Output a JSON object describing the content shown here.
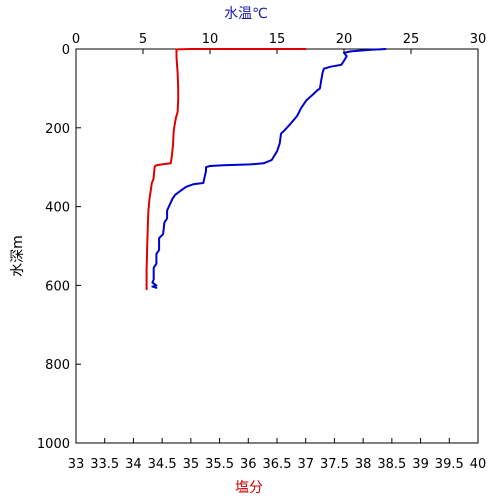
{
  "chart_data": {
    "type": "line",
    "title": "",
    "y_axis": {
      "label": "水深m",
      "range": [
        0,
        1000
      ],
      "inverted": true,
      "ticks": [
        0,
        200,
        400,
        600,
        800,
        1000
      ]
    },
    "x_axis_top": {
      "label": "水温℃",
      "label_color": "#1a1aa6",
      "range": [
        0,
        30
      ],
      "ticks": [
        0,
        5,
        10,
        15,
        20,
        25,
        30
      ]
    },
    "x_axis_bottom": {
      "label": "塩分",
      "label_color": "#cc0000",
      "range": [
        33,
        40
      ],
      "ticks": [
        "33",
        "33.5",
        "34",
        "34.5",
        "35",
        "35.5",
        "36",
        "36.5",
        "37",
        "37.5",
        "38",
        "38.5",
        "39",
        "39.5",
        "40"
      ]
    },
    "grid": false,
    "series": [
      {
        "axis": "top",
        "color": "#0000cc",
        "points": [
          [
            23.1,
            0
          ],
          [
            22.0,
            2
          ],
          [
            20.5,
            6
          ],
          [
            20.0,
            10
          ],
          [
            20.2,
            18
          ],
          [
            20.0,
            30
          ],
          [
            19.8,
            40
          ],
          [
            19.0,
            45
          ],
          [
            18.5,
            50
          ],
          [
            18.4,
            60
          ],
          [
            18.3,
            80
          ],
          [
            18.2,
            100
          ],
          [
            18.0,
            105
          ],
          [
            17.7,
            115
          ],
          [
            17.2,
            130
          ],
          [
            16.8,
            150
          ],
          [
            16.5,
            170
          ],
          [
            16.0,
            190
          ],
          [
            15.6,
            205
          ],
          [
            15.3,
            215
          ],
          [
            15.2,
            240
          ],
          [
            15.0,
            260
          ],
          [
            14.6,
            282
          ],
          [
            14.0,
            290
          ],
          [
            13.0,
            293
          ],
          [
            11.0,
            295
          ],
          [
            10.0,
            297
          ],
          [
            9.7,
            300
          ],
          [
            9.7,
            310
          ],
          [
            9.6,
            325
          ],
          [
            9.5,
            340
          ],
          [
            8.8,
            343
          ],
          [
            8.2,
            350
          ],
          [
            7.8,
            360
          ],
          [
            7.4,
            370
          ],
          [
            7.2,
            380
          ],
          [
            7.0,
            395
          ],
          [
            6.8,
            410
          ],
          [
            6.8,
            430
          ],
          [
            6.6,
            440
          ],
          [
            6.5,
            470
          ],
          [
            6.2,
            480
          ],
          [
            6.2,
            500
          ],
          [
            6.2,
            510
          ],
          [
            6.0,
            520
          ],
          [
            6.0,
            545
          ],
          [
            5.8,
            555
          ],
          [
            5.8,
            570
          ],
          [
            5.8,
            585
          ],
          [
            5.7,
            593
          ],
          [
            6.0,
            600
          ],
          [
            5.7,
            603
          ],
          [
            6.0,
            606
          ]
        ]
      },
      {
        "axis": "bottom",
        "color": "#dd0000",
        "points": [
          [
            37.0,
            0
          ],
          [
            36.0,
            0
          ],
          [
            35.0,
            0
          ],
          [
            34.75,
            1
          ],
          [
            34.75,
            20
          ],
          [
            34.77,
            60
          ],
          [
            34.78,
            100
          ],
          [
            34.78,
            130
          ],
          [
            34.77,
            160
          ],
          [
            34.74,
            175
          ],
          [
            34.72,
            190
          ],
          [
            34.7,
            210
          ],
          [
            34.69,
            240
          ],
          [
            34.67,
            270
          ],
          [
            34.65,
            290
          ],
          [
            34.5,
            293
          ],
          [
            34.4,
            295
          ],
          [
            34.37,
            298
          ],
          [
            34.35,
            330
          ],
          [
            34.32,
            340
          ],
          [
            34.3,
            360
          ],
          [
            34.28,
            380
          ],
          [
            34.26,
            410
          ],
          [
            34.25,
            450
          ],
          [
            34.24,
            500
          ],
          [
            34.23,
            560
          ],
          [
            34.23,
            610
          ]
        ]
      }
    ]
  }
}
